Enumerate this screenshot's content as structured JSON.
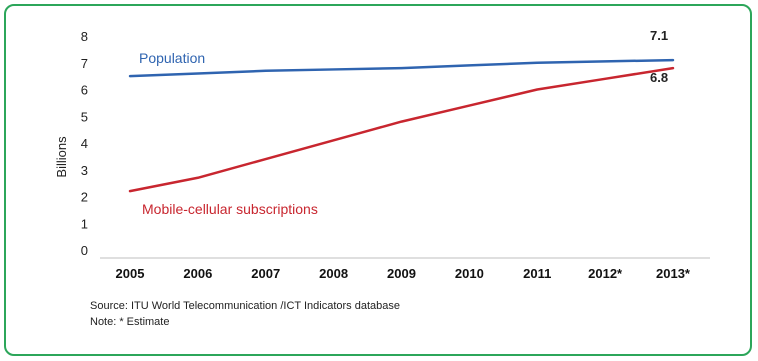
{
  "chart_data": {
    "type": "line",
    "title": "",
    "xlabel": "",
    "ylabel": "Billions",
    "ylim": [
      0,
      8
    ],
    "yticks": [
      "0",
      "1",
      "2",
      "3",
      "4",
      "5",
      "6",
      "7",
      "8"
    ],
    "categories": [
      "2005",
      "2006",
      "2007",
      "2008",
      "2009",
      "2010",
      "2011",
      "2012*",
      "2013*"
    ],
    "grid": false,
    "series": [
      {
        "name": "Population",
        "color": "#2f64b0",
        "values": [
          6.5,
          6.6,
          6.7,
          6.75,
          6.8,
          6.9,
          7.0,
          7.05,
          7.1
        ]
      },
      {
        "name": "Mobile-cellular subscriptions",
        "color": "#c8262f",
        "values": [
          2.2,
          2.7,
          3.4,
          4.1,
          4.8,
          5.4,
          6.0,
          6.4,
          6.8
        ]
      }
    ],
    "end_labels": [
      {
        "series": "Population",
        "text": "7.1"
      },
      {
        "series": "Mobile-cellular subscriptions",
        "text": "6.8"
      }
    ],
    "source": "Source:  ITU World Telecommunication /ICT Indicators database",
    "note": "Note: * Estimate"
  }
}
